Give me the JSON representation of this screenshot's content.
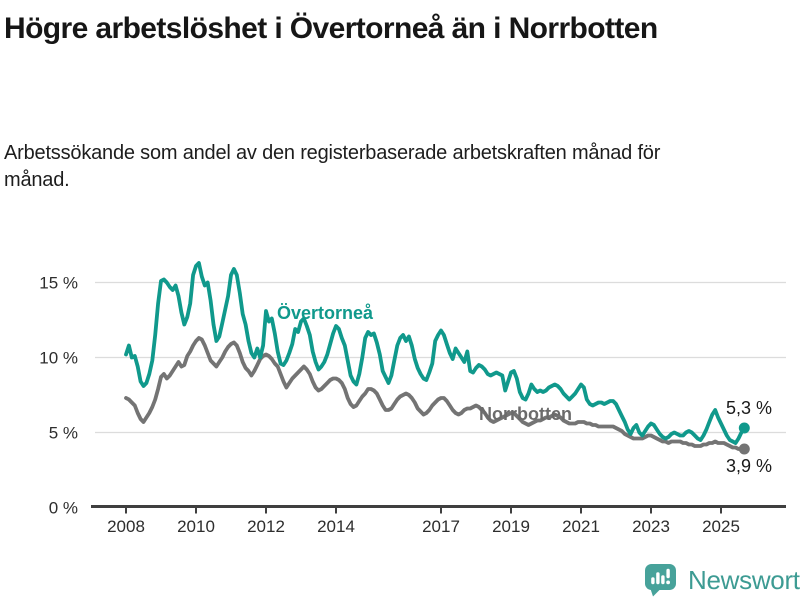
{
  "header": {
    "title": "Högre arbetslöshet i Övertorneå än i Norrbotten",
    "subtitle": "Arbetssökande som andel av den registerbaserade arbetskraften månad för månad."
  },
  "chart_data": {
    "type": "line",
    "unit": "%",
    "frequency": "monthly",
    "x_start": "2008-01",
    "x_end": "2025-09",
    "ylim": [
      0,
      17
    ],
    "yticks": [
      0,
      5,
      10,
      15
    ],
    "ytick_suffix": " %",
    "xticks": [
      2008,
      2010,
      2012,
      2014,
      2017,
      2019,
      2021,
      2023,
      2025
    ],
    "grid": "horizontal",
    "legend_position": "inline-labels",
    "series": [
      {
        "name": "Övertorneå",
        "color": "#10998c",
        "end_label": "5,3 %",
        "end_value": 5.3,
        "values": [
          10.2,
          10.8,
          10.0,
          10.1,
          9.4,
          8.4,
          8.1,
          8.3,
          8.9,
          9.8,
          11.5,
          13.6,
          15.1,
          15.2,
          15.0,
          14.7,
          14.5,
          14.8,
          14.1,
          13.0,
          12.2,
          12.7,
          13.6,
          15.5,
          16.1,
          16.3,
          15.4,
          14.8,
          15.0,
          13.8,
          12.2,
          11.1,
          11.4,
          12.3,
          13.2,
          14.1,
          15.5,
          15.9,
          15.5,
          14.3,
          12.9,
          12.2,
          11.1,
          10.3,
          10.0,
          10.6,
          10.0,
          10.8,
          13.1,
          12.4,
          12.6,
          11.6,
          10.4,
          9.6,
          9.5,
          9.8,
          10.3,
          10.9,
          11.9,
          11.7,
          12.4,
          12.6,
          12.1,
          11.5,
          10.4,
          9.7,
          9.2,
          9.4,
          9.7,
          10.2,
          10.9,
          11.6,
          12.1,
          11.9,
          11.3,
          10.8,
          9.8,
          8.8,
          8.4,
          8.2,
          8.9,
          10.0,
          11.3,
          11.7,
          11.5,
          11.6,
          11.0,
          10.2,
          9.1,
          8.7,
          8.3,
          8.8,
          9.8,
          10.8,
          11.3,
          11.5,
          11.1,
          11.4,
          10.8,
          9.9,
          9.3,
          8.9,
          8.6,
          8.5,
          9.0,
          9.6,
          11.1,
          11.5,
          11.8,
          11.5,
          10.9,
          10.3,
          9.9,
          10.6,
          10.3,
          10.0,
          9.7,
          10.4,
          9.1,
          9.0,
          9.3,
          9.5,
          9.4,
          9.2,
          8.9,
          8.8,
          8.9,
          9.0,
          8.9,
          8.8,
          7.8,
          8.4,
          9.0,
          9.1,
          8.6,
          7.7,
          7.3,
          7.2,
          7.6,
          8.2,
          7.9,
          7.7,
          7.8,
          7.7,
          7.8,
          8.0,
          8.1,
          8.2,
          8.1,
          7.9,
          7.6,
          7.4,
          7.2,
          7.4,
          7.6,
          7.9,
          8.2,
          8.0,
          7.2,
          6.9,
          6.8,
          6.9,
          7.0,
          7.0,
          6.9,
          7.0,
          7.1,
          7.1,
          6.9,
          6.5,
          6.1,
          5.7,
          5.2,
          4.9,
          5.3,
          5.5,
          5.0,
          4.8,
          5.1,
          5.4,
          5.6,
          5.5,
          5.2,
          4.9,
          4.7,
          4.6,
          4.7,
          4.9,
          5.0,
          4.9,
          4.8,
          4.8,
          5.0,
          5.1,
          5.0,
          4.8,
          4.6,
          4.5,
          4.8,
          5.2,
          5.7,
          6.2,
          6.5,
          6.0,
          5.6,
          5.2,
          4.8,
          4.5,
          4.4,
          4.3,
          4.6,
          5.0,
          5.3
        ]
      },
      {
        "name": "Norrbotten",
        "color": "#747474",
        "label_color": "#6b6b6b",
        "end_label": "3,9 %",
        "end_value": 3.9,
        "values": [
          7.3,
          7.2,
          7.0,
          6.8,
          6.3,
          5.9,
          5.7,
          6.0,
          6.3,
          6.7,
          7.2,
          7.9,
          8.7,
          8.9,
          8.6,
          8.8,
          9.1,
          9.4,
          9.7,
          9.4,
          9.5,
          10.1,
          10.4,
          10.8,
          11.1,
          11.3,
          11.2,
          10.8,
          10.3,
          9.8,
          9.6,
          9.4,
          9.7,
          10.0,
          10.4,
          10.7,
          10.9,
          11.0,
          10.8,
          10.3,
          9.7,
          9.3,
          9.1,
          8.8,
          9.1,
          9.5,
          9.9,
          10.1,
          10.2,
          10.1,
          9.9,
          9.6,
          9.4,
          8.9,
          8.4,
          8.0,
          8.3,
          8.6,
          8.8,
          9.0,
          9.2,
          9.4,
          9.2,
          8.9,
          8.4,
          8.0,
          7.8,
          7.9,
          8.1,
          8.3,
          8.5,
          8.6,
          8.6,
          8.5,
          8.3,
          7.9,
          7.3,
          6.9,
          6.7,
          6.8,
          7.1,
          7.4,
          7.6,
          7.9,
          7.9,
          7.8,
          7.6,
          7.2,
          6.8,
          6.5,
          6.5,
          6.6,
          6.9,
          7.2,
          7.4,
          7.5,
          7.6,
          7.5,
          7.3,
          7.0,
          6.6,
          6.4,
          6.2,
          6.3,
          6.5,
          6.8,
          7.0,
          7.2,
          7.3,
          7.3,
          7.1,
          6.8,
          6.5,
          6.3,
          6.2,
          6.3,
          6.5,
          6.6,
          6.6,
          6.7,
          6.8,
          6.7,
          6.5,
          6.3,
          6.0,
          5.8,
          5.7,
          5.8,
          5.9,
          6.0,
          6.1,
          6.2,
          6.3,
          6.3,
          6.1,
          5.9,
          5.7,
          5.6,
          5.5,
          5.6,
          5.7,
          5.8,
          5.8,
          5.9,
          6.0,
          6.0,
          6.1,
          6.2,
          6.1,
          6.0,
          5.8,
          5.7,
          5.6,
          5.6,
          5.6,
          5.7,
          5.7,
          5.7,
          5.6,
          5.6,
          5.5,
          5.5,
          5.4,
          5.4,
          5.4,
          5.4,
          5.4,
          5.4,
          5.3,
          5.2,
          5.1,
          4.9,
          4.8,
          4.7,
          4.6,
          4.6,
          4.6,
          4.6,
          4.7,
          4.8,
          4.8,
          4.7,
          4.6,
          4.5,
          4.4,
          4.4,
          4.3,
          4.4,
          4.4,
          4.4,
          4.4,
          4.3,
          4.3,
          4.2,
          4.2,
          4.1,
          4.1,
          4.1,
          4.2,
          4.2,
          4.3,
          4.3,
          4.4,
          4.3,
          4.3,
          4.3,
          4.2,
          4.1,
          4.0,
          4.0,
          3.9,
          3.9,
          3.9
        ]
      }
    ]
  },
  "footer": {
    "brand": "Newsworthy",
    "icon": "newsworthy-chart-bubble-icon",
    "brand_color": "#3d9b93",
    "icon_color": "#47a29a"
  }
}
